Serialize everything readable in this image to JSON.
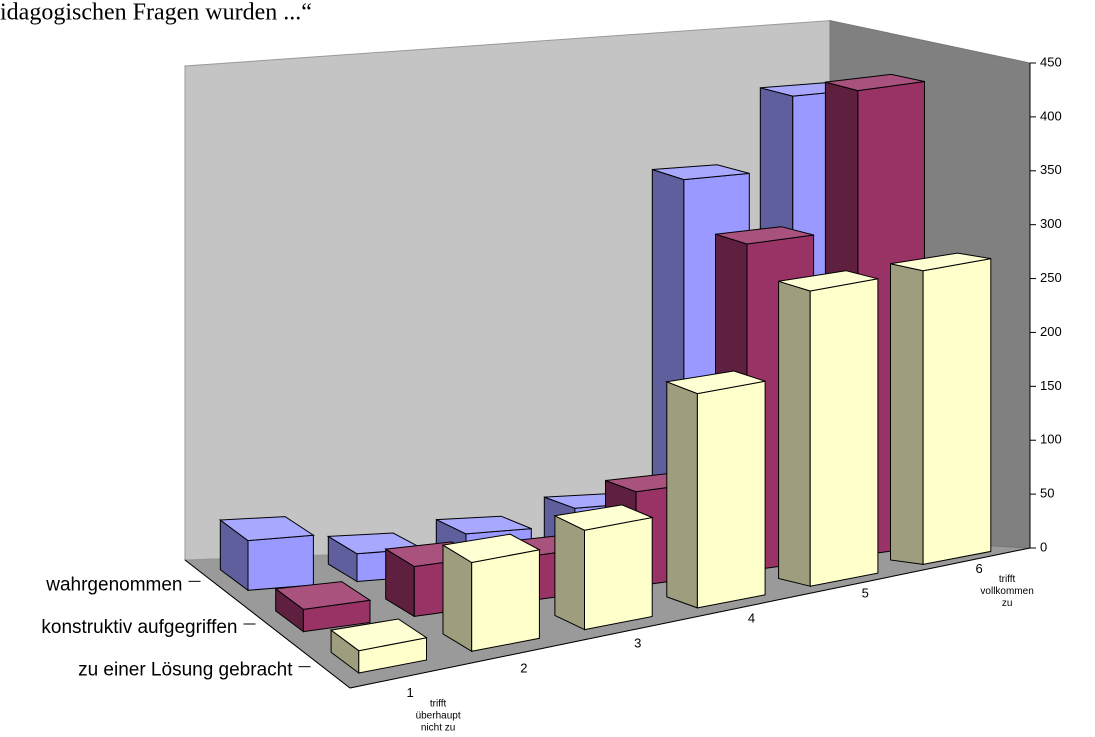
{
  "chart_data": {
    "type": "bar3d",
    "title": "idagogischen Fragen wurden ...“",
    "categories": [
      "1",
      "2",
      "3",
      "4",
      "5",
      "6"
    ],
    "annotations": [
      {
        "category": 0,
        "lines": [
          "trifft",
          "überhaupt",
          "nicht zu"
        ]
      },
      {
        "category": 5,
        "lines": [
          "trifft",
          "vollkommen",
          "zu"
        ]
      }
    ],
    "series": [
      {
        "name": "wahrgenommen",
        "color": "#9999ff",
        "values": [
          45,
          25,
          35,
          50,
          335,
          400
        ]
      },
      {
        "name": "konstruktiv aufgegriffen",
        "color": "#993366",
        "values": [
          20,
          45,
          40,
          85,
          295,
          420
        ]
      },
      {
        "name": "zu einer Lösung gebracht",
        "color": "#ffffcc",
        "values": [
          20,
          80,
          90,
          195,
          270,
          270
        ]
      }
    ],
    "ylim": [
      0,
      450
    ],
    "yticks": [
      0,
      50,
      100,
      150,
      200,
      250,
      300,
      350,
      400,
      450
    ]
  }
}
